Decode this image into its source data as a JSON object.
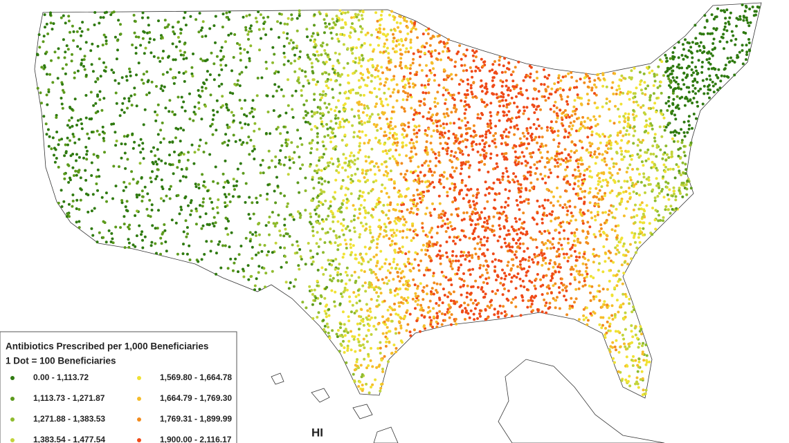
{
  "legend": {
    "title": "Antibiotics Prescribed per 1,000 Beneficiaries",
    "subtitle": "1 Dot = 100 Beneficiaries",
    "items": [
      {
        "label": "0.00 - 1,113.72",
        "color": "#2f7a10"
      },
      {
        "label": "1,113.73 - 1,271.87",
        "color": "#5c9a1c"
      },
      {
        "label": "1,271.88 - 1,383.53",
        "color": "#8fbb2e"
      },
      {
        "label": "1,383.54 - 1,477.54",
        "color": "#c2d43c"
      },
      {
        "label": "1,569.80 - 1,664.78",
        "color": "#f0e234"
      },
      {
        "label": "1,664.79 - 1,769.30",
        "color": "#f5bd2a"
      },
      {
        "label": "1,769.31 - 1,899.99",
        "color": "#f28c1e"
      },
      {
        "label": "1,900.00 - 2,116.17",
        "color": "#ef4a18"
      }
    ]
  },
  "labels": {
    "hawaii": "HI"
  }
}
